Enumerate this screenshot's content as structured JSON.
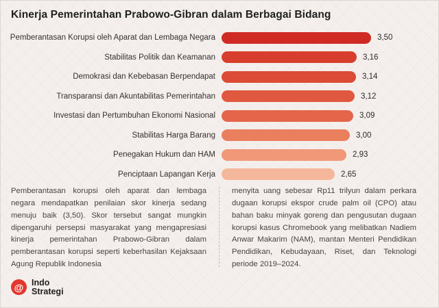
{
  "title": "Kinerja Pemerintahan Prabowo-Gibran dalam Berbagai Bidang",
  "chart_data": {
    "type": "bar",
    "orientation": "horizontal",
    "title": "Kinerja Pemerintahan Prabowo-Gibran dalam Berbagai Bidang",
    "categories": [
      "Pemberantasan Korupsi oleh Aparat dan Lembaga Negara",
      "Stabilitas Politik dan Keamanan",
      "Demokrasi dan Kebebasan Berpendapat",
      "Transparansi dan Akuntabilitas Pemerintahan",
      "Investasi dan Pertumbuhan Ekonomi Nasional",
      "Stabilitas Harga Barang",
      "Penegakan Hukum dan HAM",
      "Penciptaan Lapangan Kerja"
    ],
    "values": [
      3.5,
      3.16,
      3.14,
      3.12,
      3.09,
      3.0,
      2.93,
      2.65
    ],
    "value_labels": [
      "3,50",
      "3,16",
      "3,14",
      "3,12",
      "3,09",
      "3,00",
      "2,93",
      "2,65"
    ],
    "bar_colors": [
      "#cf2a24",
      "#d83e2d",
      "#dc4b35",
      "#e0583f",
      "#e4654a",
      "#ea7f5e",
      "#f09877",
      "#f5b79b"
    ],
    "xlim": [
      0,
      3.5
    ],
    "grid": false,
    "legend": "none"
  },
  "body": {
    "left_paragraph": "Pemberantasan korupsi oleh aparat dan lembaga negara mendapatkan penilaian skor kinerja sedang menuju baik (3,50). Skor tersebut sangat mungkin dipengaruhi persepsi masyarakat yang mengapresiasi kinerja pemerintahan Prabowo-Gibran dalam pemberantasan korupsi seperti keberhasilan Kejaksaan Agung Republik Indonesia",
    "right_paragraph": "menyita uang sebesar Rp11 trilyun dalam perkara dugaan korupsi ekspor crude palm oil (CPO) atau bahan baku minyak goreng dan pengusutan dugaan korupsi kasus Chromebook yang melibatkan Nadiem Anwar Makarim (NAM), mantan Menteri Pendidikan Pendidikan, Kebudayaan, Riset, dan Teknologi periode 2019–2024."
  },
  "logo": {
    "icon_glyph": "@",
    "icon_name": "at-spiral-icon",
    "line1": "Indo",
    "line2": "Strategi",
    "brand_color": "#e2372e"
  }
}
